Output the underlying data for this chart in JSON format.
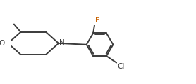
{
  "background_color": "#ffffff",
  "line_color": "#3a3a3a",
  "line_width": 1.4,
  "text_color": "#3a3a3a",
  "label_F": "F",
  "label_Cl": "Cl",
  "label_N": "N",
  "label_O": "O",
  "F_color": "#c86000",
  "Cl_color": "#3a3a3a",
  "figsize": [
    2.78,
    1.2
  ],
  "dpi": 100,
  "xlim": [
    0,
    2.78
  ],
  "ylim": [
    0,
    1.2
  ]
}
